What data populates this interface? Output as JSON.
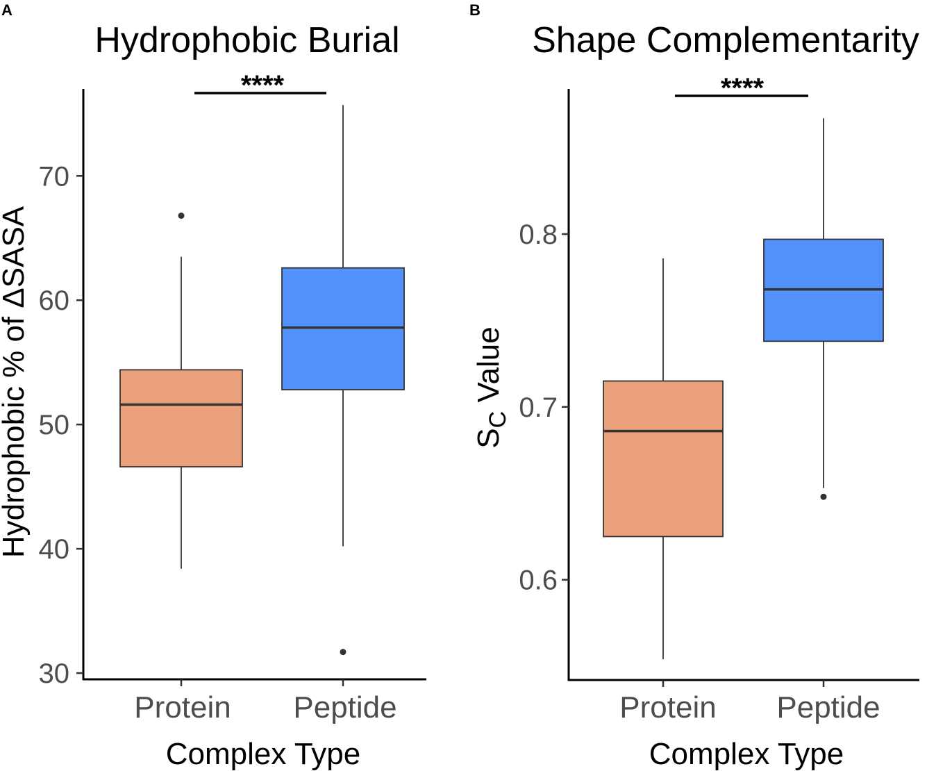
{
  "chart_data": [
    {
      "type": "box",
      "panel": "A",
      "title": "Hydrophobic Burial",
      "xlabel": "Complex Type",
      "ylabel": "Hydrophobic % of ΔSASA",
      "ylim": [
        29.5,
        77
      ],
      "yticks": [
        30,
        40,
        50,
        60,
        70
      ],
      "ytick_labels": [
        "30",
        "40",
        "50",
        "60",
        "70"
      ],
      "categories": [
        "Protein",
        "Peptide"
      ],
      "boxes": [
        {
          "name": "Protein",
          "color": "#EBA07C",
          "whisker_low": 38.4,
          "q1": 46.6,
          "median": 51.6,
          "q3": 54.4,
          "whisker_high": 63.5,
          "outliers": [
            66.8
          ]
        },
        {
          "name": "Peptide",
          "color": "#5392FB",
          "whisker_low": 40.2,
          "q1": 52.8,
          "median": 57.8,
          "q3": 62.6,
          "whisker_high": 75.7,
          "outliers": [
            31.7
          ]
        }
      ],
      "significance": {
        "label": "****",
        "between": [
          "Protein",
          "Peptide"
        ]
      }
    },
    {
      "type": "box",
      "panel": "B",
      "title": "Shape Complementarity",
      "xlabel": "Complex Type",
      "ylabel_main": "S",
      "ylabel_sub": "C",
      "ylabel_rest": " Value",
      "ylim": [
        0.542,
        0.884
      ],
      "yticks": [
        0.6,
        0.7,
        0.8
      ],
      "ytick_labels": [
        "0.6",
        "0.7",
        "0.8"
      ],
      "categories": [
        "Protein",
        "Peptide"
      ],
      "boxes": [
        {
          "name": "Protein",
          "color": "#EBA07C",
          "whisker_low": 0.554,
          "q1": 0.625,
          "median": 0.686,
          "q3": 0.715,
          "whisker_high": 0.786,
          "outliers": []
        },
        {
          "name": "Peptide",
          "color": "#5392FB",
          "whisker_low": 0.653,
          "q1": 0.738,
          "median": 0.768,
          "q3": 0.797,
          "whisker_high": 0.867,
          "outliers": [
            0.648
          ]
        }
      ],
      "significance": {
        "label": "****",
        "between": [
          "Protein",
          "Peptide"
        ]
      }
    }
  ]
}
